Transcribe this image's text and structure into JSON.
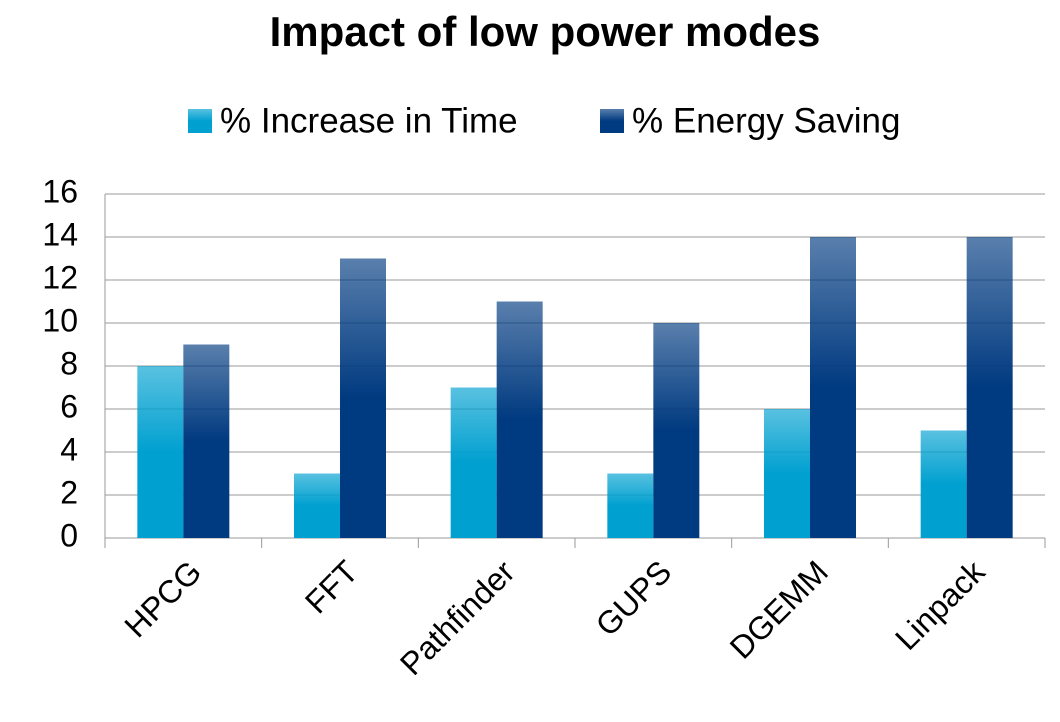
{
  "chart_data": {
    "type": "bar",
    "title": "Impact of low power modes",
    "categories": [
      "HPCG",
      "FFT",
      "Pathfinder",
      "GUPS",
      "DGEMM",
      "Linpack"
    ],
    "series": [
      {
        "name": "% Increase in Time",
        "color": "#00a0d0",
        "values": [
          8,
          3,
          7,
          3,
          6,
          5
        ]
      },
      {
        "name": "% Energy Saving",
        "color": "#003a80",
        "values": [
          9,
          13,
          11,
          10,
          14,
          14
        ]
      }
    ],
    "ylim": [
      0,
      16
    ],
    "yticks": [
      0,
      2,
      4,
      6,
      8,
      10,
      12,
      14,
      16
    ],
    "grid": true,
    "legend": "top"
  }
}
